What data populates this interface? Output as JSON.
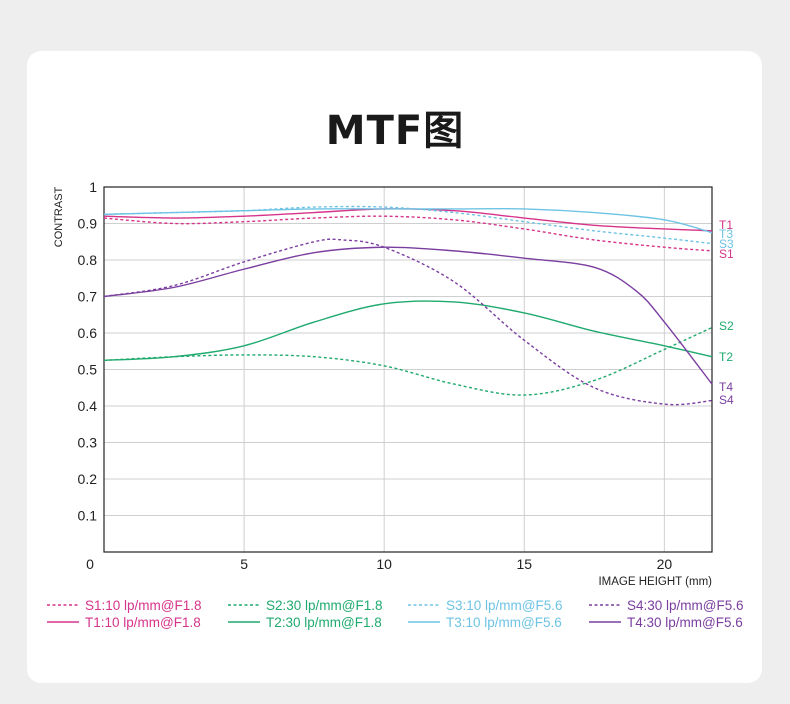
{
  "title": "MTF图",
  "chart_data": {
    "type": "line",
    "title": "MTF图",
    "ylabel": "CONTRAST",
    "xlabel": "IMAGE HEIGHT (mm)",
    "xlim": [
      0,
      21.7
    ],
    "ylim": [
      0,
      1
    ],
    "x_ticks": [
      "0",
      "5",
      "10",
      "15",
      "20"
    ],
    "y_ticks": [
      "1",
      "0.9",
      "0.8",
      "0.7",
      "0.6",
      "0.5",
      "0.4",
      "0.3",
      "0.2",
      "0.1"
    ],
    "grid": true,
    "legend_placement": "bottom",
    "series": [
      {
        "name": "S1:10 lp/mm@F1.8",
        "end_label": "S1",
        "color": "#d6338a",
        "dashed": true,
        "x": [
          0,
          2.5,
          5,
          7.5,
          10,
          12.5,
          15,
          17.5,
          20,
          21.7
        ],
        "y": [
          0.915,
          0.9,
          0.905,
          0.915,
          0.92,
          0.91,
          0.885,
          0.855,
          0.835,
          0.825
        ]
      },
      {
        "name": "T1:10 lp/mm@F1.8",
        "end_label": "T1",
        "color": "#d6338a",
        "dashed": false,
        "x": [
          0,
          2.5,
          5,
          7.5,
          10,
          12.5,
          15,
          17.5,
          20,
          21.7
        ],
        "y": [
          0.92,
          0.915,
          0.92,
          0.93,
          0.94,
          0.935,
          0.915,
          0.895,
          0.885,
          0.88
        ]
      },
      {
        "name": "S2:30 lp/mm@F1.8",
        "end_label": "S2",
        "color": "#1faa6e",
        "dashed": true,
        "x": [
          0,
          2.5,
          5,
          7.5,
          10,
          12.5,
          15,
          17.5,
          20,
          21.7
        ],
        "y": [
          0.525,
          0.535,
          0.54,
          0.535,
          0.51,
          0.46,
          0.43,
          0.47,
          0.555,
          0.615
        ]
      },
      {
        "name": "T2:30 lp/mm@F1.8",
        "end_label": "T2",
        "color": "#1faa6e",
        "dashed": false,
        "x": [
          0,
          2.5,
          5,
          7.5,
          10,
          12.5,
          15,
          17.5,
          20,
          21.7
        ],
        "y": [
          0.525,
          0.535,
          0.565,
          0.63,
          0.68,
          0.685,
          0.655,
          0.605,
          0.565,
          0.535
        ]
      },
      {
        "name": "S3:10 lp/mm@F5.6",
        "end_label": "S3",
        "color": "#6ec3e4",
        "dashed": true,
        "x": [
          0,
          2.5,
          5,
          7.5,
          10,
          12.5,
          15,
          17.5,
          20,
          21.7
        ],
        "y": [
          0.925,
          0.93,
          0.935,
          0.945,
          0.945,
          0.93,
          0.905,
          0.88,
          0.86,
          0.845
        ]
      },
      {
        "name": "T3:10 lp/mm@F5.6",
        "end_label": "T3",
        "color": "#6ec3e4",
        "dashed": false,
        "x": [
          0,
          2.5,
          5,
          7.5,
          10,
          12.5,
          15,
          17.5,
          20,
          21.7
        ],
        "y": [
          0.925,
          0.93,
          0.935,
          0.94,
          0.94,
          0.94,
          0.94,
          0.93,
          0.91,
          0.875
        ]
      },
      {
        "name": "S4:30 lp/mm@F5.6",
        "end_label": "S4",
        "color": "#7a3ea0",
        "dashed": true,
        "x": [
          0,
          2.5,
          5,
          7.5,
          8.5,
          10,
          12.5,
          15,
          17.5,
          20,
          21.7
        ],
        "y": [
          0.7,
          0.73,
          0.795,
          0.85,
          0.855,
          0.835,
          0.74,
          0.58,
          0.45,
          0.405,
          0.415
        ]
      },
      {
        "name": "T4:30 lp/mm@F5.6",
        "end_label": "T4",
        "color": "#7a3ea0",
        "dashed": false,
        "x": [
          0,
          2.5,
          5,
          7.5,
          10,
          12.5,
          15,
          17.5,
          19,
          20,
          21.7
        ],
        "y": [
          0.7,
          0.725,
          0.775,
          0.82,
          0.835,
          0.825,
          0.805,
          0.78,
          0.715,
          0.63,
          0.46
        ]
      }
    ]
  }
}
